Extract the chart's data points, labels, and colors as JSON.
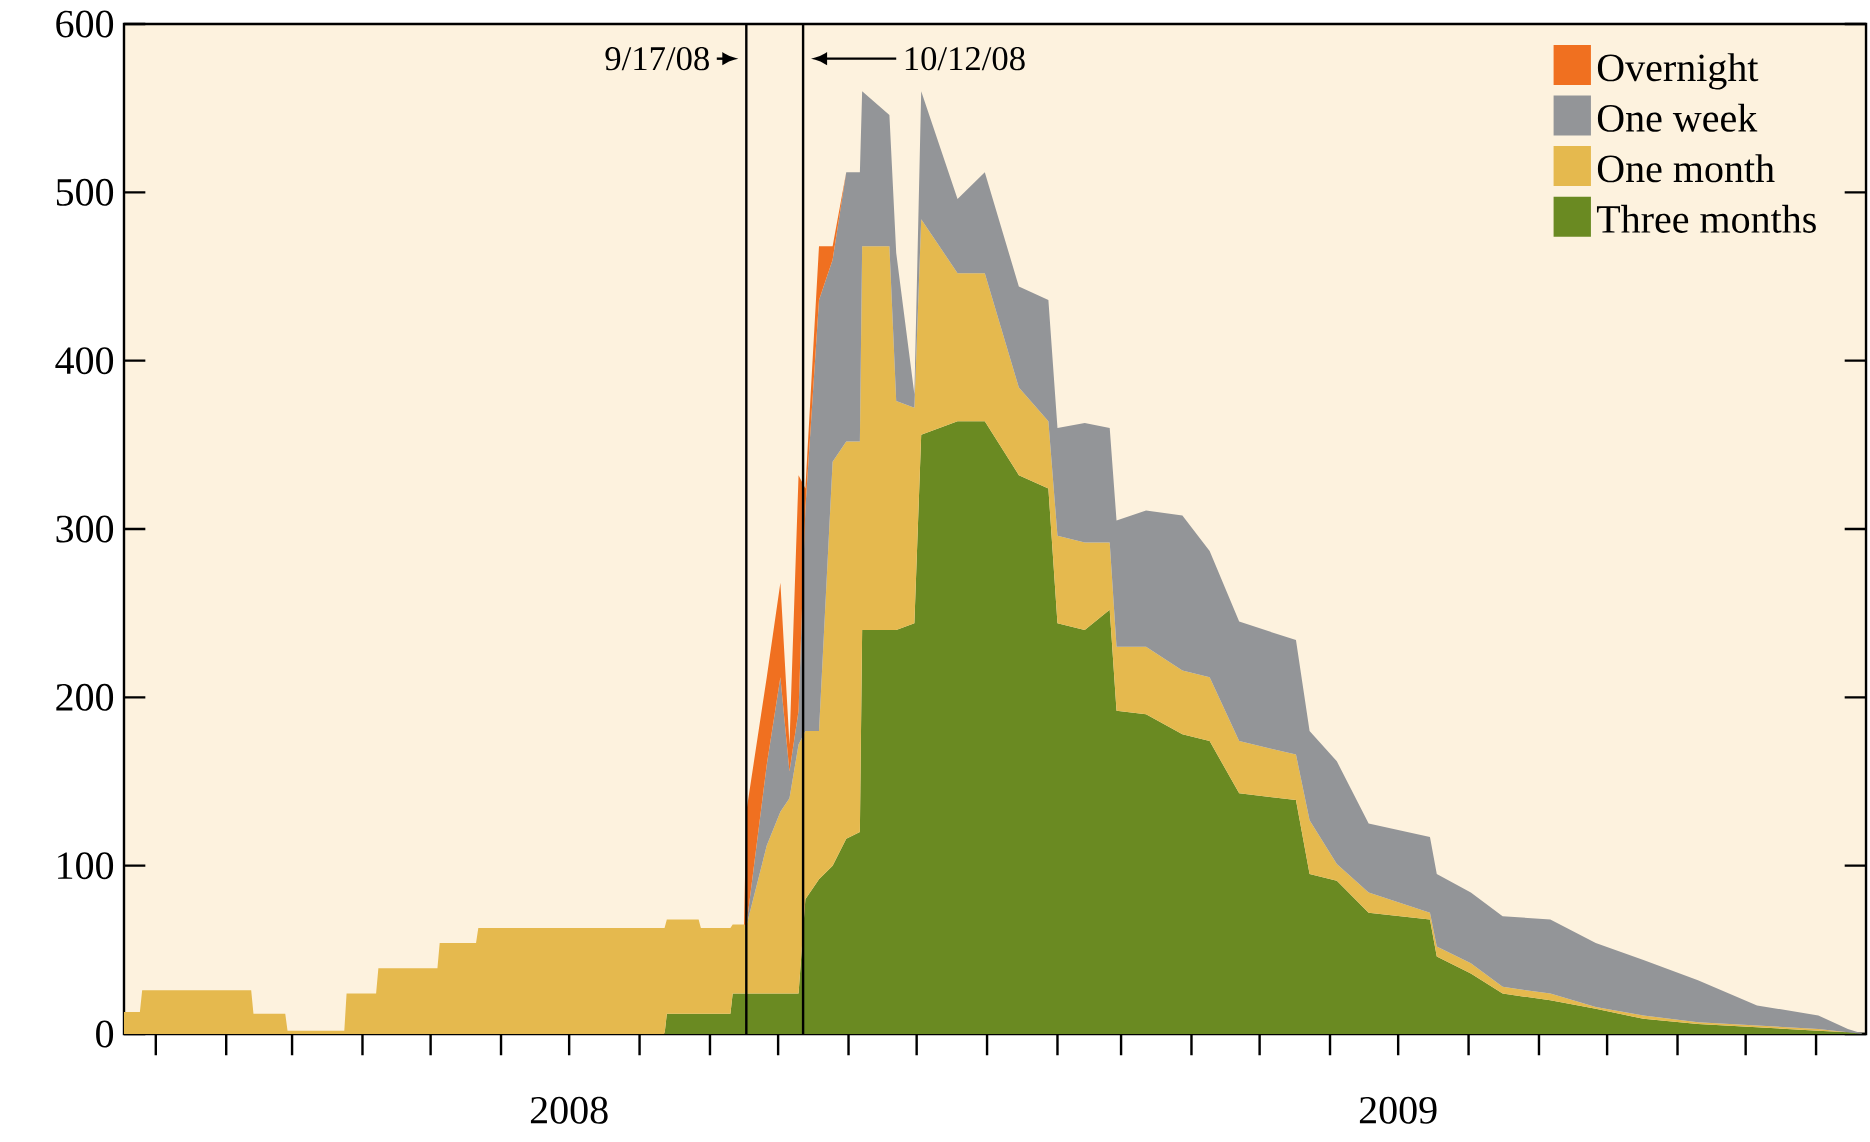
{
  "chart_data": {
    "type": "area",
    "stacked": true,
    "x": [
      "2007-12-18",
      "2007-12-25",
      "2007-12-26",
      "2008-02-12",
      "2008-02-13",
      "2008-02-27",
      "2008-02-28",
      "2008-03-24",
      "2008-03-25",
      "2008-04-07",
      "2008-04-08",
      "2008-05-04",
      "2008-05-05",
      "2008-05-21",
      "2008-05-22",
      "2008-08-12",
      "2008-08-13",
      "2008-08-27",
      "2008-08-28",
      "2008-09-10",
      "2008-09-11",
      "2008-09-16",
      "2008-09-17",
      "2008-09-26",
      "2008-10-02",
      "2008-10-06",
      "2008-10-10",
      "2008-10-13",
      "2008-10-19",
      "2008-10-25",
      "2008-10-31",
      "2008-11-06",
      "2008-11-07",
      "2008-11-19",
      "2008-11-22",
      "2008-11-30",
      "2008-12-03",
      "2008-12-19",
      "2008-12-31",
      "2009-01-15",
      "2009-01-28",
      "2009-02-01",
      "2009-02-13",
      "2009-02-24",
      "2009-02-27",
      "2009-03-12",
      "2009-03-28",
      "2009-04-09",
      "2009-04-22",
      "2009-05-17",
      "2009-05-23",
      "2009-06-04",
      "2009-06-18",
      "2009-07-15",
      "2009-07-18",
      "2009-08-02",
      "2009-08-16",
      "2009-09-06",
      "2009-09-26",
      "2009-10-17",
      "2009-11-10",
      "2009-12-06",
      "2010-01-02",
      "2010-01-15",
      "2010-01-22"
    ],
    "series": [
      {
        "name": "Three months",
        "color": "#6a8a22",
        "values": [
          0,
          0,
          0,
          0,
          0,
          0,
          0,
          0,
          0,
          0,
          0,
          0,
          0,
          0,
          0,
          0,
          12,
          12,
          12,
          12,
          24,
          24,
          24,
          24,
          24,
          24,
          24,
          80,
          92,
          100,
          116,
          120,
          240,
          240,
          240,
          244,
          356,
          364,
          364,
          332,
          324,
          244,
          240,
          252,
          192,
          190,
          178,
          174,
          143,
          139,
          95,
          91,
          72,
          68,
          46,
          36,
          24,
          20,
          15,
          9,
          6,
          4,
          2,
          1,
          0
        ]
      },
      {
        "name": "One month",
        "color": "#e5b94e",
        "values": [
          13,
          13,
          26,
          26,
          12,
          12,
          2,
          2,
          24,
          24,
          39,
          39,
          54,
          54,
          63,
          63,
          56,
          56,
          51,
          51,
          41,
          41,
          40,
          88,
          108,
          116,
          148,
          100,
          88,
          240,
          236,
          232,
          228,
          228,
          136,
          128,
          128,
          88,
          88,
          52,
          40,
          52,
          52,
          40,
          38,
          40,
          38,
          38,
          31,
          27,
          32,
          10,
          12,
          4,
          6,
          6,
          4,
          4,
          1,
          2,
          1,
          1,
          1,
          0,
          0
        ]
      },
      {
        "name": "One week",
        "color": "#939598",
        "values": [
          0,
          0,
          0,
          0,
          0,
          0,
          0,
          0,
          0,
          0,
          0,
          0,
          0,
          0,
          0,
          0,
          0,
          0,
          0,
          0,
          0,
          0,
          0,
          48,
          80,
          16,
          20,
          132,
          256,
          120,
          160,
          160,
          92,
          78,
          88,
          8,
          76,
          44,
          60,
          60,
          72,
          64,
          71,
          68,
          75,
          81,
          92,
          75,
          71,
          68,
          53,
          61,
          41,
          45,
          43,
          42,
          42,
          44,
          38,
          33,
          25,
          12,
          8,
          2,
          0
        ]
      },
      {
        "name": "Overnight",
        "color": "#f07020",
        "values": [
          null,
          null,
          null,
          null,
          null,
          null,
          null,
          null,
          null,
          null,
          null,
          null,
          null,
          null,
          null,
          null,
          null,
          null,
          null,
          null,
          null,
          0,
          68,
          52,
          56,
          16,
          140,
          12,
          32,
          8,
          0,
          null,
          null,
          null,
          null,
          null,
          null,
          null,
          null,
          null,
          null,
          null,
          null,
          null,
          null,
          null,
          null,
          null,
          null,
          null,
          null,
          null,
          null,
          null,
          null,
          null,
          null,
          null,
          null,
          null,
          null,
          null,
          null,
          null,
          null
        ]
      }
    ],
    "xlim": [
      "2007-12-18",
      "2010-01-23"
    ],
    "xticks": [
      {
        "value": "2008-01-01",
        "label": null
      },
      {
        "value": "2008-02-01",
        "label": null
      },
      {
        "value": "2008-03-01",
        "label": null
      },
      {
        "value": "2008-04-01",
        "label": null
      },
      {
        "value": "2008-05-01",
        "label": null
      },
      {
        "value": "2008-06-01",
        "label": null
      },
      {
        "value": "2008-07-01",
        "label": "2008"
      },
      {
        "value": "2008-08-01",
        "label": null
      },
      {
        "value": "2008-09-01",
        "label": null
      },
      {
        "value": "2008-10-01",
        "label": null
      },
      {
        "value": "2008-11-01",
        "label": null
      },
      {
        "value": "2008-12-01",
        "label": null
      },
      {
        "value": "2009-01-01",
        "label": null
      },
      {
        "value": "2009-02-01",
        "label": null
      },
      {
        "value": "2009-03-01",
        "label": null
      },
      {
        "value": "2009-04-01",
        "label": null
      },
      {
        "value": "2009-05-01",
        "label": null
      },
      {
        "value": "2009-06-01",
        "label": null
      },
      {
        "value": "2009-07-01",
        "label": "2009"
      },
      {
        "value": "2009-08-01",
        "label": null
      },
      {
        "value": "2009-09-01",
        "label": null
      },
      {
        "value": "2009-10-01",
        "label": null
      },
      {
        "value": "2009-11-01",
        "label": null
      },
      {
        "value": "2009-12-01",
        "label": null
      },
      {
        "value": "2010-01-01",
        "label": null
      }
    ],
    "ylim": [
      0,
      600
    ],
    "yticks": [
      0,
      100,
      200,
      300,
      400,
      500,
      600
    ],
    "ref_lines": [
      {
        "axis": "x",
        "value": "2008-09-17",
        "label": "9/17/08"
      },
      {
        "axis": "x",
        "value": "2008-10-12",
        "label": "10/12/08"
      }
    ],
    "legend": "top right"
  }
}
